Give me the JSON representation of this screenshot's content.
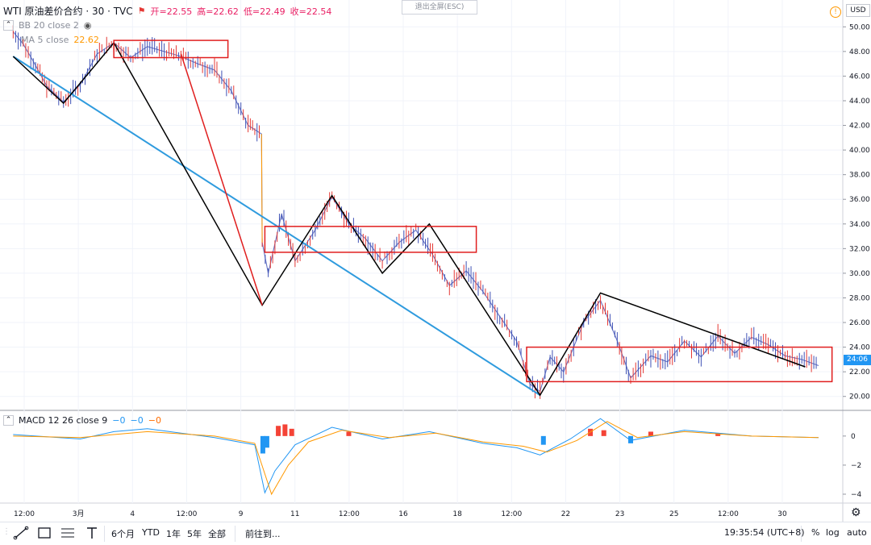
{
  "header": {
    "symbol": "WTI 原油差价合约 · 30 · TVC",
    "open_label": "开=22.55",
    "high_label": "高=22.62",
    "low_label": "低=22.49",
    "close_label": "收=22.54",
    "exit_fullscreen": "退出全屏(ESC)",
    "currency": "USD"
  },
  "indicators": {
    "bb_label": "BB 20 close 2",
    "ma_label": "MA 5 close",
    "ma_value": "22.62",
    "macd_label": "MACD 12 26 close 9",
    "macd_v1": "−0",
    "macd_v2": "−0",
    "macd_v3": "−0"
  },
  "current_price_tag": "24:06",
  "bottom_bar": {
    "range_6m": "6个月",
    "range_ytd": "YTD",
    "range_1y": "1年",
    "range_5y": "5年",
    "range_all": "全部",
    "goto": "前往到...",
    "clock": "19:35:54 (UTC+8)",
    "percent": "%",
    "log": "log",
    "auto": "auto"
  },
  "colors": {
    "candle_up": "#3f51b5",
    "candle_down": "#e53935",
    "trend_blue": "#2f9bde",
    "zigzag_black": "#000000",
    "zigzag_red": "#e01e1e",
    "box_red": "#e01e1e",
    "ma_orange": "#ff9800",
    "macd_pos": "#f44336",
    "macd_neg": "#2196f3"
  },
  "chart_data": {
    "type": "line",
    "title": "WTI 原油差价合约 · 30 · TVC",
    "x_ticks": [
      "12:00",
      "3月",
      "4",
      "12:00",
      "9",
      "11",
      "12:00",
      "16",
      "18",
      "12:00",
      "22",
      "23",
      "25",
      "12:00",
      "30"
    ],
    "ylim": [
      19,
      51
    ],
    "y_ticks": [
      20,
      22,
      24,
      26,
      28,
      30,
      32,
      34,
      36,
      38,
      40,
      42,
      44,
      46,
      48,
      50
    ],
    "y_tick_labels": [
      "20.00",
      "22.00",
      "24.00",
      "26.00",
      "28.00",
      "30.00",
      "32.00",
      "34.00",
      "36.00",
      "38.00",
      "40.00",
      "42.00",
      "44.00",
      "46.00",
      "48.00",
      "50.00"
    ],
    "series": [
      {
        "name": "",
        "points": [
          [
            0,
            49.6
          ],
          [
            0.15,
            48.6
          ],
          [
            0.3,
            47.2
          ],
          [
            0.5,
            45.2
          ],
          [
            0.75,
            43.9
          ],
          [
            1.0,
            45.3
          ],
          [
            1.25,
            47.8
          ],
          [
            1.5,
            48.7
          ],
          [
            1.75,
            47.5
          ],
          [
            2.0,
            48.4
          ],
          [
            2.5,
            47.6
          ],
          [
            2.75,
            47.0
          ],
          [
            3.0,
            46.5
          ],
          [
            3.25,
            44.8
          ],
          [
            3.5,
            42.0
          ],
          [
            3.7,
            41.3
          ],
          [
            3.71,
            32.5
          ],
          [
            3.8,
            30.0
          ],
          [
            4.0,
            34.8
          ],
          [
            4.2,
            31.0
          ],
          [
            4.5,
            33.5
          ],
          [
            4.75,
            36.2
          ],
          [
            5.0,
            34.0
          ],
          [
            5.25,
            32.8
          ],
          [
            5.5,
            31.0
          ],
          [
            5.75,
            32.5
          ],
          [
            6.0,
            33.5
          ],
          [
            6.25,
            31.5
          ],
          [
            6.5,
            29.0
          ],
          [
            6.75,
            30.2
          ],
          [
            7.0,
            28.5
          ],
          [
            7.25,
            26.5
          ],
          [
            7.5,
            24.5
          ],
          [
            7.7,
            21.0
          ],
          [
            7.85,
            20.4
          ],
          [
            8.0,
            23.2
          ],
          [
            8.2,
            22.0
          ],
          [
            8.5,
            26.0
          ],
          [
            8.75,
            27.8
          ],
          [
            9.0,
            24.5
          ],
          [
            9.2,
            21.5
          ],
          [
            9.5,
            23.3
          ],
          [
            9.75,
            22.8
          ],
          [
            10.0,
            24.5
          ],
          [
            10.25,
            23.2
          ],
          [
            10.5,
            24.9
          ],
          [
            10.75,
            23.5
          ],
          [
            11.0,
            24.8
          ],
          [
            11.25,
            24.2
          ],
          [
            11.5,
            23.3
          ],
          [
            11.75,
            23.0
          ],
          [
            12.0,
            22.5
          ]
        ]
      }
    ],
    "annotations": {
      "blue_trendline": [
        [
          0,
          47.6
        ],
        [
          7.85,
          20.1
        ]
      ],
      "black_zigzag": [
        [
          0,
          47.6
        ],
        [
          0.75,
          43.8
        ],
        [
          1.5,
          48.7
        ],
        [
          3.71,
          27.4
        ],
        [
          4.75,
          36.3
        ],
        [
          5.5,
          30.0
        ],
        [
          6.2,
          34.0
        ],
        [
          7.85,
          20.1
        ],
        [
          8.75,
          28.4
        ],
        [
          11.8,
          22.4
        ]
      ],
      "red_zigzag_1": [
        [
          2.5,
          47.8
        ],
        [
          3.71,
          27.4
        ]
      ],
      "red_boxes": [
        [
          [
            1.5,
            48.9
          ],
          [
            3.2,
            47.5
          ]
        ],
        [
          [
            3.75,
            33.8
          ],
          [
            6.9,
            31.7
          ]
        ],
        [
          [
            7.65,
            24.0
          ],
          [
            12.2,
            21.2
          ]
        ]
      ]
    },
    "macd": {
      "ylim": [
        -4.5,
        1.6
      ],
      "y_ticks": [
        0,
        -2,
        -4
      ],
      "y_tick_labels": [
        "0",
        "−2",
        "−4"
      ],
      "macd_line": [
        [
          0,
          0.1
        ],
        [
          1,
          -0.2
        ],
        [
          1.5,
          0.3
        ],
        [
          2,
          0.5
        ],
        [
          3,
          -0.1
        ],
        [
          3.6,
          -0.6
        ],
        [
          3.75,
          -3.9
        ],
        [
          3.9,
          -2.4
        ],
        [
          4.2,
          -0.6
        ],
        [
          4.75,
          0.6
        ],
        [
          5.5,
          -0.2
        ],
        [
          6.2,
          0.3
        ],
        [
          7,
          -0.5
        ],
        [
          7.5,
          -0.8
        ],
        [
          7.85,
          -1.3
        ],
        [
          8.3,
          -0.2
        ],
        [
          8.75,
          1.2
        ],
        [
          9.2,
          -0.3
        ],
        [
          10,
          0.4
        ],
        [
          11,
          0.0
        ],
        [
          12,
          -0.1
        ]
      ],
      "signal_line": [
        [
          0,
          0.0
        ],
        [
          1,
          -0.1
        ],
        [
          1.5,
          0.1
        ],
        [
          2,
          0.3
        ],
        [
          3,
          0.0
        ],
        [
          3.6,
          -0.5
        ],
        [
          3.85,
          -4.0
        ],
        [
          4.1,
          -2.0
        ],
        [
          4.4,
          -0.4
        ],
        [
          4.9,
          0.4
        ],
        [
          5.6,
          -0.1
        ],
        [
          6.3,
          0.2
        ],
        [
          7,
          -0.4
        ],
        [
          7.6,
          -0.7
        ],
        [
          7.95,
          -1.1
        ],
        [
          8.4,
          -0.3
        ],
        [
          8.85,
          1.0
        ],
        [
          9.3,
          -0.1
        ],
        [
          10,
          0.3
        ],
        [
          11,
          0.0
        ],
        [
          12,
          -0.1
        ]
      ],
      "histogram": [
        [
          3.72,
          -1.2
        ],
        [
          3.78,
          -0.8
        ],
        [
          3.95,
          0.7
        ],
        [
          4.05,
          0.8
        ],
        [
          4.15,
          0.5
        ],
        [
          5.0,
          0.3
        ],
        [
          7.9,
          -0.6
        ],
        [
          8.6,
          0.5
        ],
        [
          8.8,
          0.4
        ],
        [
          9.2,
          -0.5
        ],
        [
          9.5,
          0.3
        ],
        [
          10.5,
          0.2
        ]
      ]
    }
  }
}
